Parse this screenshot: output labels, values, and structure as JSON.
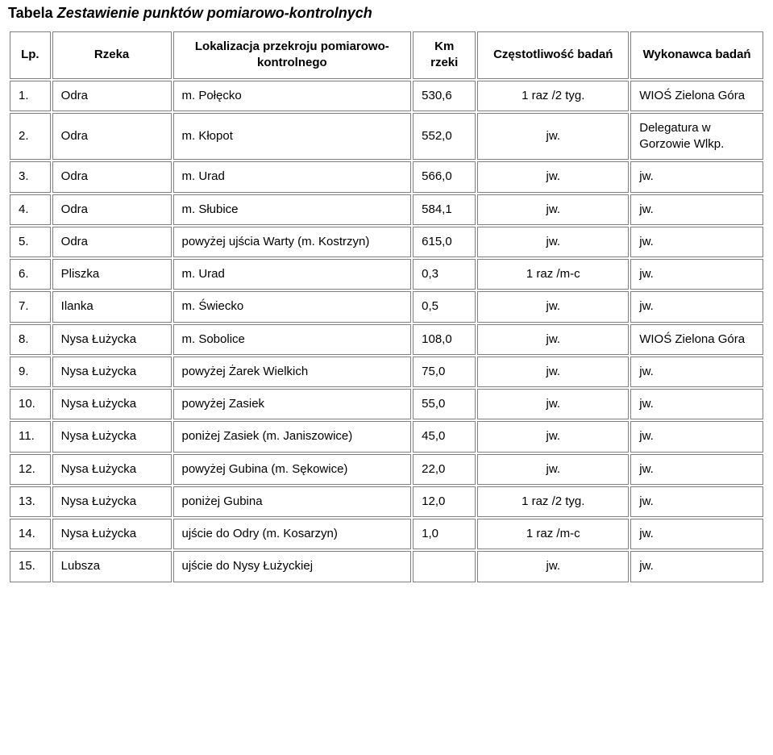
{
  "title_bold": "Tabela",
  "title_ital": "Zestawienie punktów pomiarowo-kontrolnych",
  "columns": [
    "Lp.",
    "Rzeka",
    "Lokalizacja przekroju pomiarowo-kontrolnego",
    "Km rzeki",
    "Częstotliwość badań",
    "Wykonawca badań"
  ],
  "rows": [
    {
      "lp": "1.",
      "rzeka": "Odra",
      "lok": "m. Połęcko",
      "km": "530,6",
      "cz": "1 raz /2 tyg.",
      "wy": "WIOŚ Zielona Góra"
    },
    {
      "lp": "2.",
      "rzeka": "Odra",
      "lok": "m. Kłopot",
      "km": "552,0",
      "cz": "jw.",
      "wy": "Delegatura w Gorzowie Wlkp."
    },
    {
      "lp": "3.",
      "rzeka": "Odra",
      "lok": "m. Urad",
      "km": "566,0",
      "cz": "jw.",
      "wy": "jw."
    },
    {
      "lp": "4.",
      "rzeka": "Odra",
      "lok": "m. Słubice",
      "km": "584,1",
      "cz": "jw.",
      "wy": "jw."
    },
    {
      "lp": "5.",
      "rzeka": "Odra",
      "lok": "powyżej ujścia Warty (m. Kostrzyn)",
      "km": "615,0",
      "cz": "jw.",
      "wy": "jw."
    },
    {
      "lp": "6.",
      "rzeka": "Pliszka",
      "lok": "m. Urad",
      "km": "0,3",
      "cz": "1 raz /m-c",
      "wy": "jw."
    },
    {
      "lp": "7.",
      "rzeka": "Ilanka",
      "lok": "m. Świecko",
      "km": "0,5",
      "cz": "jw.",
      "wy": "jw."
    },
    {
      "lp": "8.",
      "rzeka": "Nysa Łużycka",
      "lok": "m. Sobolice",
      "km": "108,0",
      "cz": "jw.",
      "wy": "WIOŚ Zielona Góra"
    },
    {
      "lp": "9.",
      "rzeka": "Nysa Łużycka",
      "lok": "powyżej Żarek Wielkich",
      "km": "75,0",
      "cz": "jw.",
      "wy": "jw."
    },
    {
      "lp": "10.",
      "rzeka": "Nysa Łużycka",
      "lok": "powyżej Zasiek",
      "km": "55,0",
      "cz": "jw.",
      "wy": "jw."
    },
    {
      "lp": "11.",
      "rzeka": "Nysa Łużycka",
      "lok": "poniżej Zasiek (m. Janiszowice)",
      "km": "45,0",
      "cz": "jw.",
      "wy": "jw."
    },
    {
      "lp": "12.",
      "rzeka": "Nysa Łużycka",
      "lok": "powyżej Gubina (m. Sękowice)",
      "km": "22,0",
      "cz": "jw.",
      "wy": "jw."
    },
    {
      "lp": "13.",
      "rzeka": "Nysa Łużycka",
      "lok": "poniżej Gubina",
      "km": "12,0",
      "cz": "1 raz /2 tyg.",
      "wy": "jw."
    },
    {
      "lp": "14.",
      "rzeka": "Nysa Łużycka",
      "lok": "ujście do Odry (m. Kosarzyn)",
      "km": "1,0",
      "cz": "1 raz /m-c",
      "wy": "jw."
    },
    {
      "lp": "15.",
      "rzeka": "Lubsza",
      "lok": "ujście do Nysy Łużyckiej",
      "km": "",
      "cz": "jw.",
      "wy": "jw."
    }
  ]
}
